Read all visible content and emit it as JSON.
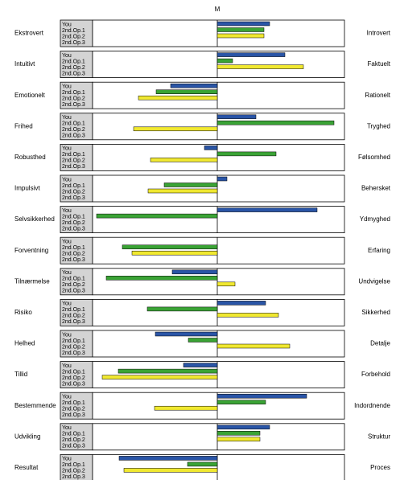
{
  "chart_data": {
    "type": "diverging-bar",
    "title": "M",
    "categories": [
      "Ekstrovert",
      "Intuitivt",
      "Emotionelt",
      "Frihed",
      "Robusthed",
      "Impulsivt",
      "Selvsikkerhed",
      "Forventning",
      "Tilnærmelse",
      "Risiko",
      "Helhed",
      "Tillid",
      "Bestemmende",
      "Udvikling",
      "Resultat"
    ],
    "right_labels": [
      "Introvert",
      "Faktuelt",
      "Rationelt",
      "Tryghed",
      "Følsomhed",
      "Behersket",
      "Ydmyghed",
      "Erfaring",
      "Undvigelse",
      "Sikkerhed",
      "Detalje",
      "Forbehold",
      "Indordnende",
      "Struktur",
      "Proces"
    ],
    "xlim": [
      -155,
      158
    ],
    "series": [
      {
        "name": "You",
        "color": "#2a55a6",
        "values": [
          65,
          84,
          -58,
          48,
          -16,
          12,
          124,
          0,
          -56,
          60,
          -77,
          -42,
          111,
          65,
          -122
        ]
      },
      {
        "name": "2nd.Op.1",
        "color": "#3aa335",
        "values": [
          58,
          19,
          -76,
          145,
          73,
          -66,
          -150,
          -118,
          -138,
          -87,
          -36,
          -123,
          60,
          53,
          -37
        ]
      },
      {
        "name": "2nd.Op.2",
        "color": "#f0e830",
        "values": [
          58,
          107,
          -98,
          -104,
          -83,
          -86,
          0,
          -106,
          22,
          76,
          90,
          -143,
          -78,
          53,
          -116
        ]
      },
      {
        "name": "2nd.Op.3",
        "color": "#999999",
        "values": [
          null,
          null,
          null,
          null,
          null,
          null,
          null,
          null,
          null,
          null,
          null,
          null,
          null,
          null,
          null
        ]
      }
    ]
  }
}
